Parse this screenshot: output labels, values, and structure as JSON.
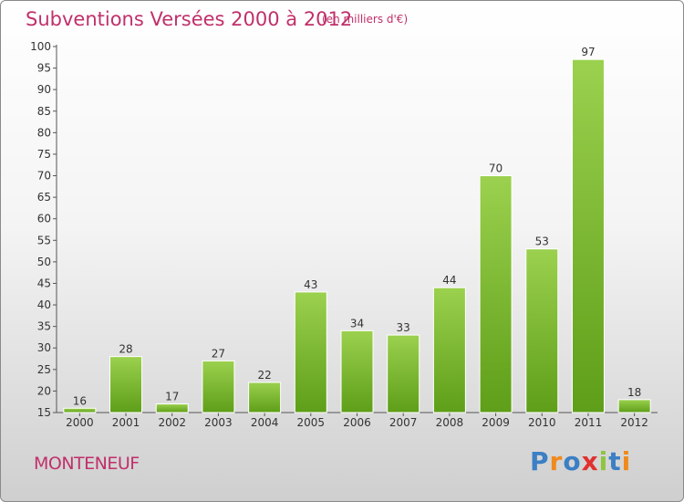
{
  "title": "Subventions Versées 2000 à 2012",
  "subtitle": "(en milliers d'€)",
  "commune": "MONTENEUF",
  "logo": {
    "letters": [
      "P",
      "r",
      "o",
      "x",
      "i",
      "t",
      "i"
    ]
  },
  "colors": {
    "title": "#c0306a",
    "bar_top": "#9bd14e",
    "bar_bottom": "#5e9e18"
  },
  "chart_data": {
    "type": "bar",
    "categories": [
      "2000",
      "2001",
      "2002",
      "2003",
      "2004",
      "2005",
      "2006",
      "2007",
      "2008",
      "2009",
      "2010",
      "2011",
      "2012"
    ],
    "values": [
      16,
      28,
      17,
      27,
      22,
      43,
      34,
      33,
      44,
      70,
      53,
      97,
      18
    ],
    "ylim": [
      15,
      100
    ],
    "yticks": [
      15,
      20,
      25,
      30,
      35,
      40,
      45,
      50,
      55,
      60,
      65,
      70,
      75,
      80,
      85,
      90,
      95,
      100
    ],
    "grid": false,
    "legend": "none"
  }
}
